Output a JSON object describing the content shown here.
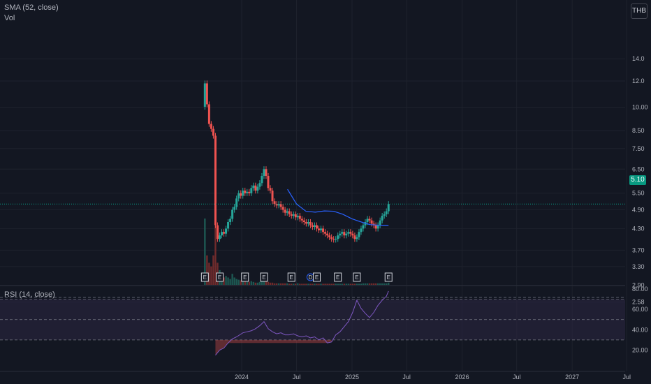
{
  "legend": {
    "sma": "SMA (52, close)",
    "vol": "Vol",
    "rsi": "RSI (14, close)"
  },
  "currency": "THB",
  "last_price": "5.10",
  "colors": {
    "background": "#131722",
    "up": "#26a69a",
    "down": "#ef5350",
    "sma": "#2962ff",
    "rsi": "#7e57c2",
    "rsi_band": "#2a2440",
    "last_price": "#089981"
  },
  "chart_data": [
    {
      "type": "candlestick",
      "title": "",
      "scale": "log",
      "ylim": [
        2.55,
        15.0
      ],
      "y_ticks": [
        "14.0",
        "12.0",
        "10.00",
        "8.50",
        "7.50",
        "6.50",
        "5.50",
        "4.90",
        "4.30",
        "3.70",
        "3.30",
        "2.90",
        "2.58"
      ],
      "x_ticks": [
        "2024",
        "Jul",
        "2025",
        "Jul",
        "2026",
        "Jul",
        "2027",
        "Jul"
      ],
      "x_ticks_dates": [
        "2024-01-01",
        "2024-07-01",
        "2025-01-01",
        "2025-07-01",
        "2026-01-01",
        "2026-07-01",
        "2027-01-01",
        "2027-07-01"
      ],
      "closes": [
        {
          "date": "2023-09-01",
          "value": 11.8
        },
        {
          "date": "2023-09-08",
          "value": 10.2
        },
        {
          "date": "2023-09-15",
          "value": 8.9
        },
        {
          "date": "2023-09-22",
          "value": 8.6
        },
        {
          "date": "2023-09-29",
          "value": 8.2
        },
        {
          "date": "2023-10-06",
          "value": 4.4
        },
        {
          "date": "2023-10-13",
          "value": 4.0
        },
        {
          "date": "2023-10-20",
          "value": 4.1
        },
        {
          "date": "2023-10-27",
          "value": 4.2
        },
        {
          "date": "2023-11-03",
          "value": 4.15
        },
        {
          "date": "2023-11-10",
          "value": 4.3
        },
        {
          "date": "2023-11-17",
          "value": 4.5
        },
        {
          "date": "2023-11-24",
          "value": 4.6
        },
        {
          "date": "2023-12-01",
          "value": 4.9
        },
        {
          "date": "2023-12-08",
          "value": 5.0
        },
        {
          "date": "2023-12-15",
          "value": 5.3
        },
        {
          "date": "2023-12-22",
          "value": 5.5
        },
        {
          "date": "2023-12-29",
          "value": 5.4
        },
        {
          "date": "2024-01-05",
          "value": 5.6
        },
        {
          "date": "2024-01-12",
          "value": 5.5
        },
        {
          "date": "2024-01-19",
          "value": 5.55
        },
        {
          "date": "2024-01-26",
          "value": 5.5
        },
        {
          "date": "2024-02-02",
          "value": 5.7
        },
        {
          "date": "2024-02-09",
          "value": 5.8
        },
        {
          "date": "2024-02-16",
          "value": 5.6
        },
        {
          "date": "2024-02-23",
          "value": 5.75
        },
        {
          "date": "2024-03-01",
          "value": 5.9
        },
        {
          "date": "2024-03-08",
          "value": 6.2
        },
        {
          "date": "2024-03-15",
          "value": 6.5
        },
        {
          "date": "2024-03-22",
          "value": 6.2
        },
        {
          "date": "2024-03-29",
          "value": 5.7
        },
        {
          "date": "2024-04-05",
          "value": 5.6
        },
        {
          "date": "2024-04-12",
          "value": 5.2
        },
        {
          "date": "2024-04-19",
          "value": 5.1
        },
        {
          "date": "2024-04-26",
          "value": 5.05
        },
        {
          "date": "2024-05-03",
          "value": 5.1
        },
        {
          "date": "2024-05-10",
          "value": 5.0
        },
        {
          "date": "2024-05-17",
          "value": 4.9
        },
        {
          "date": "2024-05-24",
          "value": 4.8
        },
        {
          "date": "2024-05-31",
          "value": 4.85
        },
        {
          "date": "2024-06-07",
          "value": 4.75
        },
        {
          "date": "2024-06-14",
          "value": 4.7
        },
        {
          "date": "2024-06-21",
          "value": 4.75
        },
        {
          "date": "2024-06-28",
          "value": 4.65
        },
        {
          "date": "2024-07-05",
          "value": 4.7
        },
        {
          "date": "2024-07-12",
          "value": 4.6
        },
        {
          "date": "2024-07-19",
          "value": 4.55
        },
        {
          "date": "2024-07-26",
          "value": 4.5
        },
        {
          "date": "2024-08-02",
          "value": 4.45
        },
        {
          "date": "2024-08-09",
          "value": 4.5
        },
        {
          "date": "2024-08-16",
          "value": 4.4
        },
        {
          "date": "2024-08-23",
          "value": 4.35
        },
        {
          "date": "2024-08-30",
          "value": 4.4
        },
        {
          "date": "2024-09-06",
          "value": 4.3
        },
        {
          "date": "2024-09-13",
          "value": 4.25
        },
        {
          "date": "2024-09-20",
          "value": 4.3
        },
        {
          "date": "2024-09-27",
          "value": 4.2
        },
        {
          "date": "2024-10-04",
          "value": 4.15
        },
        {
          "date": "2024-10-11",
          "value": 4.1
        },
        {
          "date": "2024-10-18",
          "value": 4.05
        },
        {
          "date": "2024-10-25",
          "value": 4.0
        },
        {
          "date": "2024-11-01",
          "value": 3.98
        },
        {
          "date": "2024-11-08",
          "value": 4.0
        },
        {
          "date": "2024-11-15",
          "value": 4.1
        },
        {
          "date": "2024-11-22",
          "value": 4.15
        },
        {
          "date": "2024-11-29",
          "value": 4.2
        },
        {
          "date": "2024-12-06",
          "value": 4.1
        },
        {
          "date": "2024-12-13",
          "value": 4.15
        },
        {
          "date": "2024-12-20",
          "value": 4.2
        },
        {
          "date": "2024-12-27",
          "value": 4.15
        },
        {
          "date": "2025-01-03",
          "value": 4.1
        },
        {
          "date": "2025-01-10",
          "value": 4.0
        },
        {
          "date": "2025-01-17",
          "value": 4.05
        },
        {
          "date": "2025-01-24",
          "value": 4.2
        },
        {
          "date": "2025-01-31",
          "value": 4.3
        },
        {
          "date": "2025-02-07",
          "value": 4.4
        },
        {
          "date": "2025-02-14",
          "value": 4.5
        },
        {
          "date": "2025-02-21",
          "value": 4.6
        },
        {
          "date": "2025-02-28",
          "value": 4.55
        },
        {
          "date": "2025-03-07",
          "value": 4.45
        },
        {
          "date": "2025-03-14",
          "value": 4.4
        },
        {
          "date": "2025-03-21",
          "value": 4.3
        },
        {
          "date": "2025-03-28",
          "value": 4.4
        },
        {
          "date": "2025-04-04",
          "value": 4.55
        },
        {
          "date": "2025-04-11",
          "value": 4.7
        },
        {
          "date": "2025-04-18",
          "value": 4.75
        },
        {
          "date": "2025-04-25",
          "value": 4.85
        },
        {
          "date": "2025-05-02",
          "value": 5.1
        }
      ],
      "volumes": [
        {
          "date": "2023-09-01",
          "value": 9
        },
        {
          "date": "2023-09-08",
          "value": 4
        },
        {
          "date": "2023-09-15",
          "value": 3
        },
        {
          "date": "2023-09-22",
          "value": 2.5
        },
        {
          "date": "2023-09-29",
          "value": 4
        },
        {
          "date": "2023-10-06",
          "value": 8
        },
        {
          "date": "2023-10-13",
          "value": 3
        },
        {
          "date": "2023-10-20",
          "value": 2
        },
        {
          "date": "2023-10-27",
          "value": 1.5
        },
        {
          "date": "2023-11-03",
          "value": 1
        },
        {
          "date": "2023-11-10",
          "value": 1.2
        },
        {
          "date": "2023-11-17",
          "value": 1
        },
        {
          "date": "2023-11-24",
          "value": 0.8
        },
        {
          "date": "2023-12-01",
          "value": 1.5
        },
        {
          "date": "2023-12-08",
          "value": 1
        },
        {
          "date": "2023-12-15",
          "value": 0.8
        },
        {
          "date": "2023-12-22",
          "value": 0.7
        },
        {
          "date": "2023-12-29",
          "value": 0.6
        },
        {
          "date": "2024-01-05",
          "value": 0.5
        },
        {
          "date": "2024-01-12",
          "value": 0.5
        },
        {
          "date": "2024-01-19",
          "value": 0.4
        },
        {
          "date": "2024-01-26",
          "value": 0.4
        },
        {
          "date": "2024-02-02",
          "value": 0.5
        },
        {
          "date": "2024-02-09",
          "value": 0.4
        },
        {
          "date": "2024-02-16",
          "value": 0.3
        },
        {
          "date": "2024-02-23",
          "value": 0.3
        },
        {
          "date": "2024-03-01",
          "value": 0.4
        },
        {
          "date": "2024-03-08",
          "value": 0.5
        },
        {
          "date": "2024-03-15",
          "value": 0.6
        },
        {
          "date": "2024-03-22",
          "value": 0.5
        },
        {
          "date": "2024-03-29",
          "value": 0.4
        },
        {
          "date": "2024-04-05",
          "value": 0.3
        },
        {
          "date": "2024-04-12",
          "value": 0.3
        },
        {
          "date": "2024-04-19",
          "value": 0.2
        },
        {
          "date": "2024-04-26",
          "value": 0.2
        },
        {
          "date": "2024-05-03",
          "value": 0.2
        },
        {
          "date": "2024-05-10",
          "value": 0.2
        },
        {
          "date": "2024-05-17",
          "value": 0.2
        },
        {
          "date": "2024-05-24",
          "value": 0.2
        },
        {
          "date": "2024-05-31",
          "value": 0.2
        },
        {
          "date": "2024-06-07",
          "value": 0.15
        },
        {
          "date": "2024-06-14",
          "value": 0.15
        },
        {
          "date": "2024-06-21",
          "value": 0.15
        },
        {
          "date": "2024-06-28",
          "value": 0.15
        },
        {
          "date": "2024-07-05",
          "value": 0.2
        },
        {
          "date": "2024-07-12",
          "value": 0.15
        },
        {
          "date": "2024-07-19",
          "value": 0.15
        },
        {
          "date": "2024-07-26",
          "value": 0.15
        },
        {
          "date": "2024-08-02",
          "value": 0.15
        },
        {
          "date": "2024-08-09",
          "value": 0.15
        },
        {
          "date": "2024-08-16",
          "value": 0.15
        },
        {
          "date": "2024-08-23",
          "value": 0.15
        },
        {
          "date": "2024-08-30",
          "value": 0.15
        },
        {
          "date": "2024-09-06",
          "value": 0.15
        },
        {
          "date": "2024-09-13",
          "value": 0.15
        },
        {
          "date": "2024-09-20",
          "value": 0.15
        },
        {
          "date": "2024-09-27",
          "value": 0.15
        },
        {
          "date": "2024-10-04",
          "value": 0.15
        },
        {
          "date": "2024-10-11",
          "value": 0.15
        },
        {
          "date": "2024-10-18",
          "value": 0.15
        },
        {
          "date": "2024-10-25",
          "value": 0.15
        },
        {
          "date": "2024-11-01",
          "value": 0.15
        },
        {
          "date": "2024-11-08",
          "value": 0.15
        },
        {
          "date": "2024-11-15",
          "value": 0.15
        },
        {
          "date": "2024-11-22",
          "value": 0.15
        },
        {
          "date": "2024-11-29",
          "value": 0.15
        },
        {
          "date": "2024-12-06",
          "value": 0.15
        },
        {
          "date": "2024-12-13",
          "value": 0.15
        },
        {
          "date": "2024-12-20",
          "value": 0.15
        },
        {
          "date": "2024-12-27",
          "value": 0.15
        },
        {
          "date": "2025-01-03",
          "value": 0.15
        },
        {
          "date": "2025-01-10",
          "value": 0.15
        },
        {
          "date": "2025-01-17",
          "value": 0.15
        },
        {
          "date": "2025-01-24",
          "value": 0.15
        },
        {
          "date": "2025-01-31",
          "value": 0.15
        },
        {
          "date": "2025-02-07",
          "value": 0.2
        },
        {
          "date": "2025-02-14",
          "value": 0.2
        },
        {
          "date": "2025-02-21",
          "value": 0.2
        },
        {
          "date": "2025-02-28",
          "value": 0.2
        },
        {
          "date": "2025-03-07",
          "value": 0.2
        },
        {
          "date": "2025-03-14",
          "value": 0.2
        },
        {
          "date": "2025-03-21",
          "value": 0.2
        },
        {
          "date": "2025-03-28",
          "value": 0.2
        },
        {
          "date": "2025-04-04",
          "value": 0.2
        },
        {
          "date": "2025-04-11",
          "value": 0.2
        },
        {
          "date": "2025-04-18",
          "value": 0.2
        },
        {
          "date": "2025-04-25",
          "value": 0.2
        },
        {
          "date": "2025-05-02",
          "value": 0.3
        }
      ],
      "sma_52": [
        {
          "date": "2024-06-01",
          "value": 5.65
        },
        {
          "date": "2024-07-01",
          "value": 5.1
        },
        {
          "date": "2024-08-01",
          "value": 4.85
        },
        {
          "date": "2024-09-01",
          "value": 4.82
        },
        {
          "date": "2024-10-01",
          "value": 4.86
        },
        {
          "date": "2024-11-01",
          "value": 4.85
        },
        {
          "date": "2024-12-01",
          "value": 4.75
        },
        {
          "date": "2025-01-01",
          "value": 4.6
        },
        {
          "date": "2025-02-01",
          "value": 4.5
        },
        {
          "date": "2025-03-01",
          "value": 4.42
        },
        {
          "date": "2025-04-01",
          "value": 4.4
        },
        {
          "date": "2025-05-02",
          "value": 4.4
        }
      ],
      "events": [
        {
          "date": "2023-09-01",
          "label": "E"
        },
        {
          "date": "2023-10-20",
          "label": "E"
        },
        {
          "date": "2024-01-12",
          "label": "E"
        },
        {
          "date": "2024-03-15",
          "label": "E"
        },
        {
          "date": "2024-06-14",
          "label": "E"
        },
        {
          "date": "2024-08-16",
          "label": "D"
        },
        {
          "date": "2024-09-06",
          "label": "E"
        },
        {
          "date": "2024-11-15",
          "label": "E"
        },
        {
          "date": "2025-01-17",
          "label": "E"
        },
        {
          "date": "2025-05-02",
          "label": "E"
        }
      ]
    },
    {
      "type": "line",
      "title": "RSI (14, close)",
      "ylim": [
        10,
        80
      ],
      "y_ticks": [
        "80.00",
        "60.00",
        "40.00",
        "20.00"
      ],
      "band": [
        30,
        70
      ],
      "values": [
        {
          "date": "2023-10-06",
          "value": 15
        },
        {
          "date": "2023-10-20",
          "value": 20
        },
        {
          "date": "2023-11-03",
          "value": 22
        },
        {
          "date": "2023-11-17",
          "value": 27
        },
        {
          "date": "2023-12-01",
          "value": 31
        },
        {
          "date": "2023-12-15",
          "value": 33
        },
        {
          "date": "2024-01-05",
          "value": 37
        },
        {
          "date": "2024-01-19",
          "value": 38
        },
        {
          "date": "2024-02-02",
          "value": 39
        },
        {
          "date": "2024-02-16",
          "value": 41
        },
        {
          "date": "2024-03-01",
          "value": 44
        },
        {
          "date": "2024-03-15",
          "value": 48
        },
        {
          "date": "2024-03-29",
          "value": 41
        },
        {
          "date": "2024-04-12",
          "value": 38
        },
        {
          "date": "2024-04-26",
          "value": 36
        },
        {
          "date": "2024-05-10",
          "value": 37
        },
        {
          "date": "2024-05-24",
          "value": 35
        },
        {
          "date": "2024-06-07",
          "value": 35
        },
        {
          "date": "2024-06-21",
          "value": 36
        },
        {
          "date": "2024-07-05",
          "value": 34
        },
        {
          "date": "2024-07-19",
          "value": 33
        },
        {
          "date": "2024-08-02",
          "value": 34
        },
        {
          "date": "2024-08-16",
          "value": 32
        },
        {
          "date": "2024-08-30",
          "value": 33
        },
        {
          "date": "2024-09-13",
          "value": 30
        },
        {
          "date": "2024-09-27",
          "value": 32
        },
        {
          "date": "2024-10-11",
          "value": 27
        },
        {
          "date": "2024-10-25",
          "value": 28
        },
        {
          "date": "2024-11-08",
          "value": 35
        },
        {
          "date": "2024-11-22",
          "value": 38
        },
        {
          "date": "2024-12-06",
          "value": 43
        },
        {
          "date": "2024-12-20",
          "value": 48
        },
        {
          "date": "2025-01-03",
          "value": 57
        },
        {
          "date": "2025-01-17",
          "value": 69
        },
        {
          "date": "2025-01-31",
          "value": 61
        },
        {
          "date": "2025-02-14",
          "value": 56
        },
        {
          "date": "2025-02-28",
          "value": 52
        },
        {
          "date": "2025-03-14",
          "value": 57
        },
        {
          "date": "2025-03-28",
          "value": 64
        },
        {
          "date": "2025-04-11",
          "value": 69
        },
        {
          "date": "2025-04-25",
          "value": 73
        },
        {
          "date": "2025-05-02",
          "value": 78
        }
      ]
    }
  ]
}
